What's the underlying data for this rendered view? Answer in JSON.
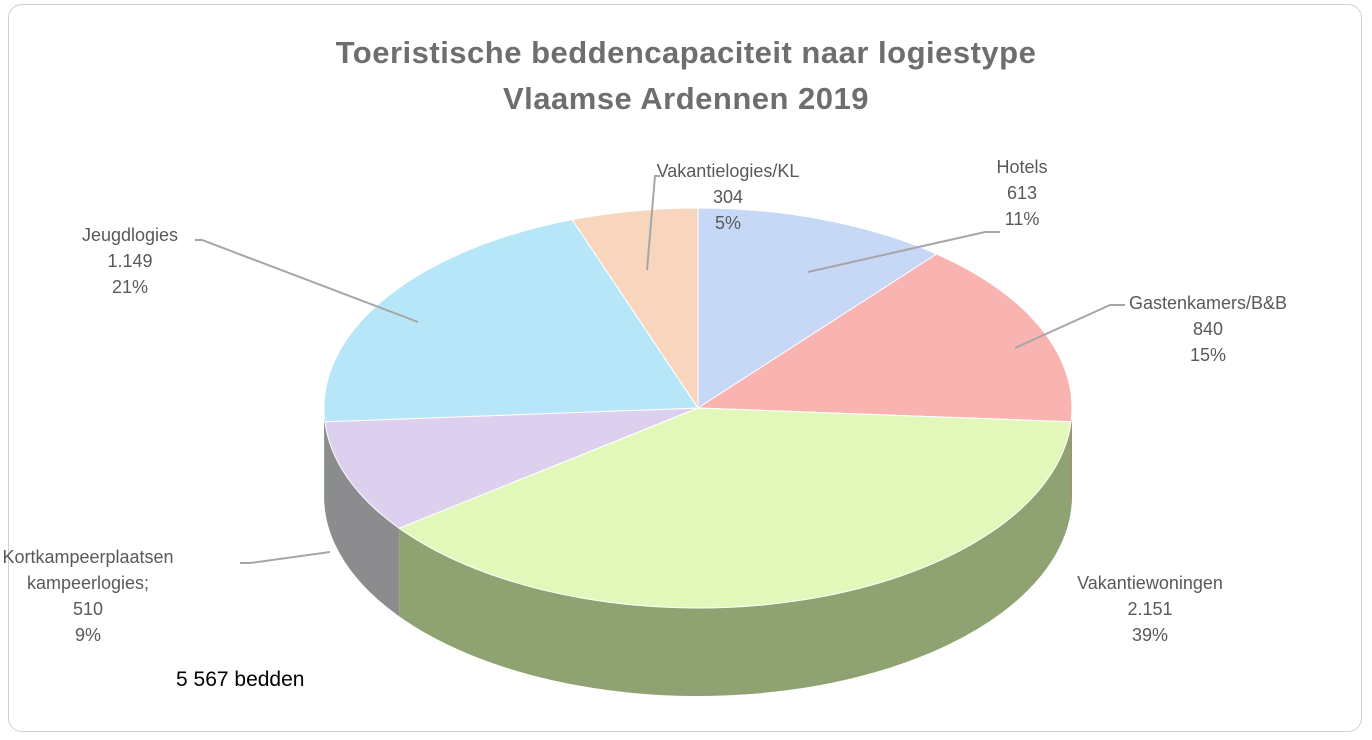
{
  "chart_data": {
    "type": "pie",
    "title": "Toeristische beddencapaciteit naar logiestype\nVlaamse Ardennen 2019",
    "categories": [
      "Hotels",
      "Gastenkamers/B&B",
      "Vakantiewoningen",
      "Kortkampeerplaatsen\nkampeerlogies;",
      "Jeugdlogies",
      "Vakantielogies/KL"
    ],
    "values": [
      613,
      840,
      2151,
      510,
      1149,
      304
    ],
    "value_labels": [
      "613",
      "840",
      "2.151",
      "510",
      "1.149",
      "304"
    ],
    "percent_labels": [
      "11%",
      "15%",
      "39%",
      "9%",
      "21%",
      "5%"
    ],
    "colors": [
      "#c6d8f6",
      "#f9b4b2",
      "#e2f8bb",
      "#dcd0ee",
      "#b6e6f8",
      "#f8d6be"
    ],
    "annotation": "5 567 bedden"
  }
}
